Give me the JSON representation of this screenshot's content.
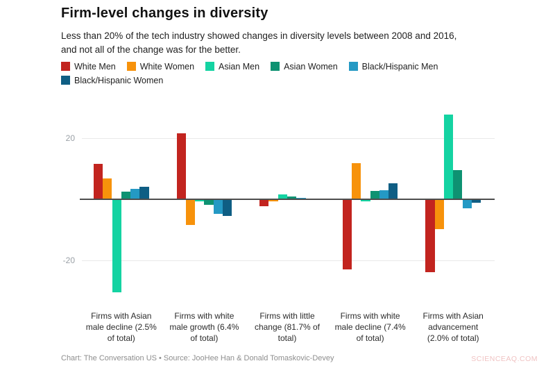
{
  "page": {
    "title": "Firm-level changes in diversity",
    "subtitle": "Less than 20% of the tech industry showed changes in diversity levels between 2008 and 2016,\nand not all of the change was for the better.",
    "footer": "Chart: The Conversation US • Source: JooHee Han & Donald Tomaskovic-Devey",
    "watermark": "SCIENCEAQ.COM"
  },
  "chart_data": {
    "type": "bar",
    "title": "Firm-level changes in diversity",
    "subtitle": "Less than 20% of the tech industry showed changes in diversity levels between 2008 and 2016, and not all of the change was for the better.",
    "xlabel": "",
    "ylabel": "",
    "ylim": [
      -33,
      30
    ],
    "grid": true,
    "legend_position": "top",
    "yticks": [
      {
        "value": 20,
        "label": "20"
      },
      {
        "value": -20,
        "label": "-20"
      }
    ],
    "categories": [
      {
        "label": "Firms with Asian male decline (2.5% of total)",
        "lines": [
          "Firms with Asian",
          "male decline (2.5%",
          "of total)"
        ]
      },
      {
        "label": "Firms with white male growth (6.4% of total)",
        "lines": [
          "Firms with white",
          "male growth (6.4%",
          "of total)"
        ]
      },
      {
        "label": "Firms with little change (81.7% of total)",
        "lines": [
          "Firms with little",
          "change (81.7% of",
          "total)"
        ]
      },
      {
        "label": "Firms with white male decline (7.4% of total)",
        "lines": [
          "Firms with white",
          "male decline (7.4%",
          "of total)"
        ]
      },
      {
        "label": "Firms with Asian advancement (2.0% of total)",
        "lines": [
          "Firms with Asian",
          "advancement",
          "(2.0% of total)"
        ]
      }
    ],
    "series": [
      {
        "name": "White Men",
        "color": "#c2241f",
        "values": [
          11.5,
          21.5,
          -2.3,
          -23.0,
          -24.0
        ]
      },
      {
        "name": "White Women",
        "color": "#f7920b",
        "values": [
          6.8,
          -8.5,
          -0.8,
          11.7,
          -9.7
        ]
      },
      {
        "name": "Asian Men",
        "color": "#14d3a2",
        "values": [
          -30.5,
          -0.7,
          1.5,
          -0.6,
          27.7
        ]
      },
      {
        "name": "Asian Women",
        "color": "#0e9272",
        "values": [
          2.4,
          -1.9,
          0.9,
          2.6,
          9.5
        ]
      },
      {
        "name": "Black/Hispanic Men",
        "color": "#2499c4",
        "values": [
          3.4,
          -4.9,
          0.4,
          3.0,
          -2.9
        ]
      },
      {
        "name": "Black/Hispanic Women",
        "color": "#0f5e84",
        "values": [
          4.0,
          -5.4,
          0.2,
          5.1,
          -1.2
        ]
      }
    ],
    "colors": {
      "axis_line": "#4d4d4d",
      "gridline": "#e9e9e9",
      "tick_text": "#9aa0a6"
    }
  }
}
